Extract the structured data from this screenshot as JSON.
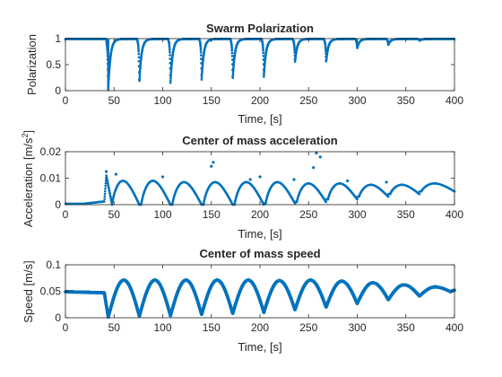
{
  "figure": {
    "colors": {
      "series": "#0072BD",
      "axis": "#262626",
      "background": "#ffffff"
    }
  },
  "chart_data": [
    {
      "type": "scatter",
      "title": "Swarm Polarization",
      "xlabel": "Time, [s]",
      "ylabel": "Polarization",
      "xlim": [
        0,
        400
      ],
      "ylim": [
        0,
        1.0
      ],
      "xticks": [
        0,
        50,
        100,
        150,
        200,
        250,
        300,
        350,
        400
      ],
      "xtick_labels": [
        "0",
        "50",
        "100",
        "150",
        "200",
        "250",
        "300",
        "350",
        "400"
      ],
      "yticks": [
        0,
        0.5,
        1
      ],
      "ytick_labels": [
        "0",
        "0.5",
        "1"
      ],
      "grid": false,
      "model": {
        "baseline": 0.99,
        "pre_event_end": 44,
        "drop_events": [
          {
            "t": 44,
            "min": 0.0
          },
          {
            "t": 76,
            "min": 0.16
          },
          {
            "t": 108,
            "min": 0.15
          },
          {
            "t": 140,
            "min": 0.2
          },
          {
            "t": 172,
            "min": 0.22
          },
          {
            "t": 204,
            "min": 0.27
          },
          {
            "t": 236,
            "min": 0.55
          },
          {
            "t": 268,
            "min": 0.55
          },
          {
            "t": 300,
            "min": 0.82
          },
          {
            "t": 332,
            "min": 0.88
          },
          {
            "t": 364,
            "min": 0.96
          }
        ]
      }
    },
    {
      "type": "scatter",
      "title": "Center of mass acceleration",
      "xlabel": "Time, [s]",
      "ylabel": "Acceleration [m/s",
      "ylabel_sup": "2",
      "ylabel_end": "]",
      "xlim": [
        0,
        400
      ],
      "ylim": [
        0,
        0.02
      ],
      "xticks": [
        0,
        50,
        100,
        150,
        200,
        250,
        300,
        350,
        400
      ],
      "xtick_labels": [
        "0",
        "50",
        "100",
        "150",
        "200",
        "250",
        "300",
        "350",
        "400"
      ],
      "yticks": [
        0,
        0.01,
        0.02
      ],
      "ytick_labels": [
        "0",
        "0.01",
        "0.02"
      ],
      "grid": false,
      "model": {
        "pre_event_value": 0.0003,
        "ramp": {
          "start": 18,
          "end": 40,
          "value": 0.0012
        },
        "onset": {
          "t": 42,
          "peak": 0.011
        },
        "cycles": [
          {
            "start": 48,
            "end": 76,
            "min": 0.0,
            "max": 0.009
          },
          {
            "start": 78,
            "end": 108,
            "min": 0.0,
            "max": 0.009
          },
          {
            "start": 110,
            "end": 140,
            "min": 0.0,
            "max": 0.0085
          },
          {
            "start": 142,
            "end": 172,
            "min": 0.0,
            "max": 0.0085
          },
          {
            "start": 174,
            "end": 204,
            "min": 0.0,
            "max": 0.0085
          },
          {
            "start": 206,
            "end": 236,
            "min": 0.0005,
            "max": 0.0085
          },
          {
            "start": 238,
            "end": 268,
            "min": 0.001,
            "max": 0.008
          },
          {
            "start": 270,
            "end": 300,
            "min": 0.002,
            "max": 0.008
          },
          {
            "start": 302,
            "end": 332,
            "min": 0.003,
            "max": 0.0075
          },
          {
            "start": 334,
            "end": 364,
            "min": 0.004,
            "max": 0.0075
          },
          {
            "start": 366,
            "end": 400,
            "min": 0.005,
            "max": 0.008
          }
        ],
        "outliers": [
          {
            "x": 42,
            "y": 0.0125
          },
          {
            "x": 52,
            "y": 0.0115
          },
          {
            "x": 100,
            "y": 0.0105
          },
          {
            "x": 150,
            "y": 0.0145
          },
          {
            "x": 152,
            "y": 0.016
          },
          {
            "x": 190,
            "y": 0.0095
          },
          {
            "x": 200,
            "y": 0.0105
          },
          {
            "x": 235,
            "y": 0.0095
          },
          {
            "x": 255,
            "y": 0.014
          },
          {
            "x": 258,
            "y": 0.0195
          },
          {
            "x": 262,
            "y": 0.018
          },
          {
            "x": 290,
            "y": 0.009
          },
          {
            "x": 330,
            "y": 0.0085
          }
        ]
      }
    },
    {
      "type": "scatter",
      "title": "Center of mass speed",
      "xlabel": "Time, [s]",
      "ylabel": "Speed [m/s]",
      "xlim": [
        0,
        400
      ],
      "ylim": [
        0,
        0.1
      ],
      "xticks": [
        0,
        50,
        100,
        150,
        200,
        250,
        300,
        350,
        400
      ],
      "xtick_labels": [
        "0",
        "50",
        "100",
        "150",
        "200",
        "250",
        "300",
        "350",
        "400"
      ],
      "yticks": [
        0,
        0.05,
        0.1
      ],
      "ytick_labels": [
        "0",
        "0.05",
        "0.1"
      ],
      "grid": false,
      "model": {
        "initial": [
          {
            "t": 0,
            "v": 0.049
          },
          {
            "t": 40,
            "v": 0.047
          }
        ],
        "minima": [
          {
            "t": 44,
            "v": 0.001
          },
          {
            "t": 76,
            "v": 0.003
          },
          {
            "t": 108,
            "v": 0.004
          },
          {
            "t": 140,
            "v": 0.006
          },
          {
            "t": 172,
            "v": 0.008
          },
          {
            "t": 204,
            "v": 0.01
          },
          {
            "t": 236,
            "v": 0.015
          },
          {
            "t": 268,
            "v": 0.02
          },
          {
            "t": 300,
            "v": 0.027
          },
          {
            "t": 332,
            "v": 0.034
          },
          {
            "t": 364,
            "v": 0.041
          },
          {
            "t": 396,
            "v": 0.049
          }
        ],
        "maxima": [
          {
            "t": 60,
            "v": 0.071
          },
          {
            "t": 92,
            "v": 0.071
          },
          {
            "t": 124,
            "v": 0.071
          },
          {
            "t": 156,
            "v": 0.071
          },
          {
            "t": 188,
            "v": 0.071
          },
          {
            "t": 220,
            "v": 0.07
          },
          {
            "t": 252,
            "v": 0.071
          },
          {
            "t": 284,
            "v": 0.069
          },
          {
            "t": 316,
            "v": 0.066
          },
          {
            "t": 348,
            "v": 0.062
          },
          {
            "t": 380,
            "v": 0.058
          }
        ],
        "end": {
          "t": 400,
          "v": 0.052
        }
      }
    }
  ]
}
